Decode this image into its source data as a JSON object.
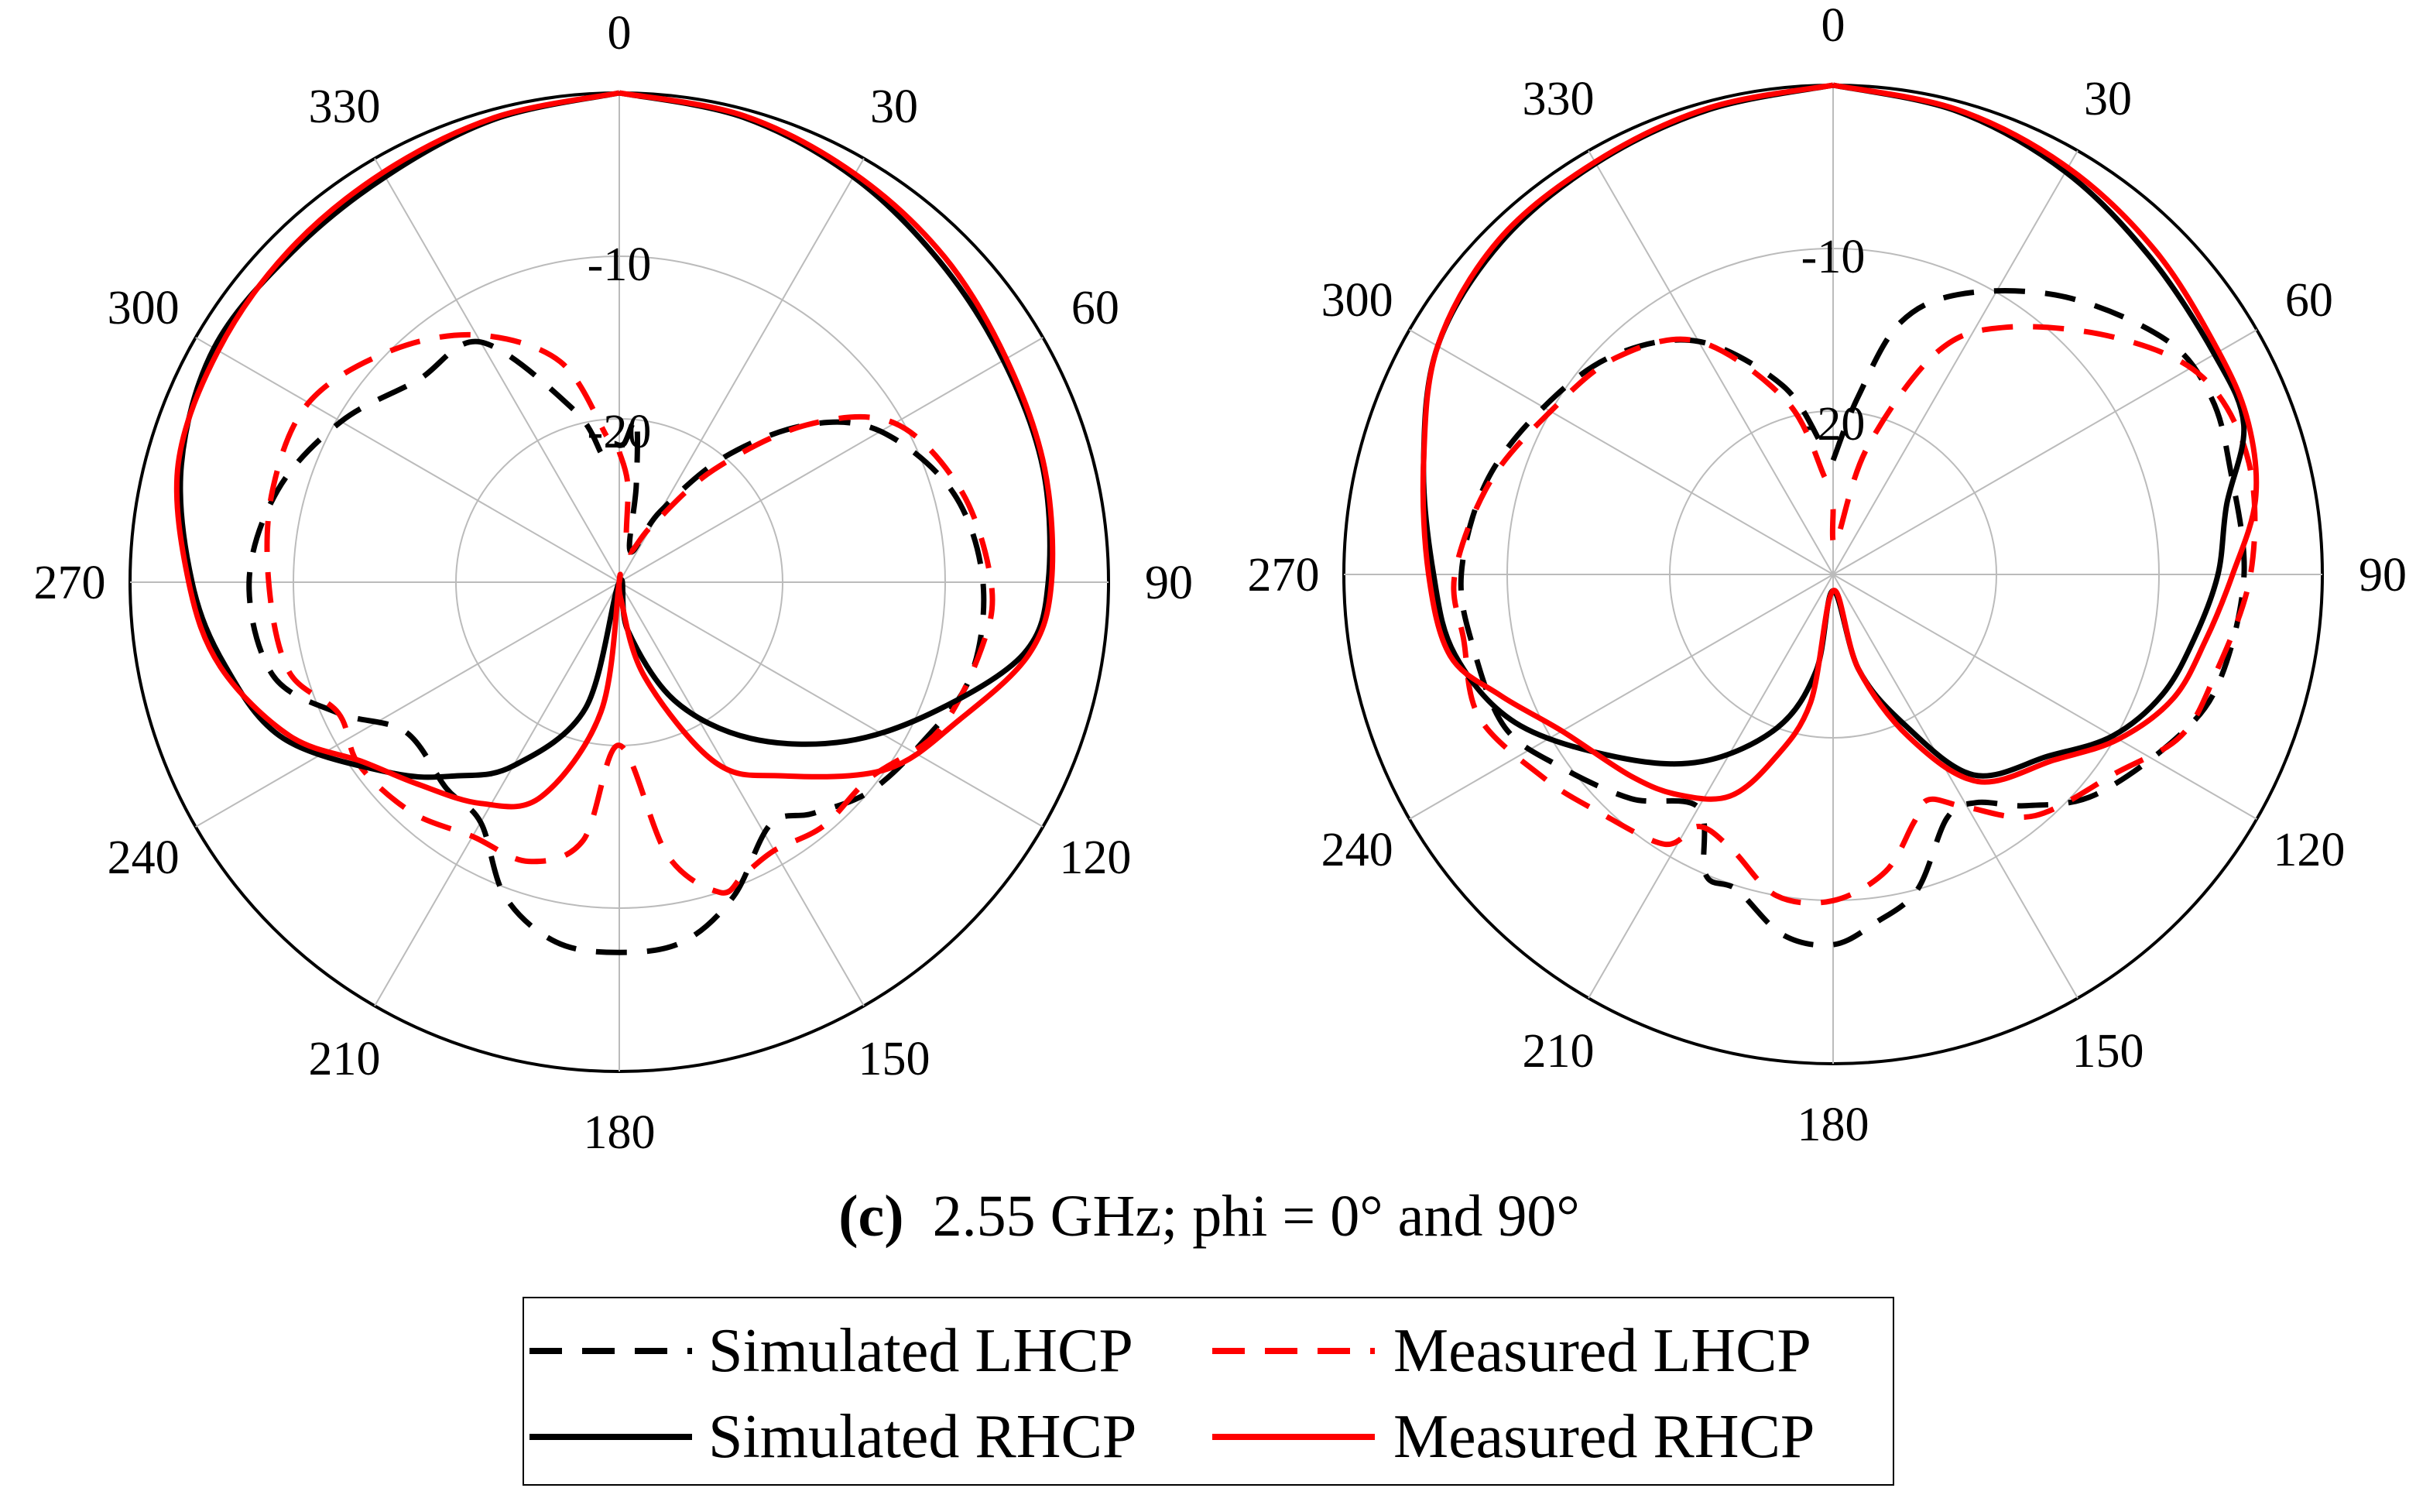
{
  "chart_data": [
    {
      "type": "polar",
      "title": "phi = 0°",
      "angle_ticks": [
        "0",
        "30",
        "60",
        "90",
        "120",
        "150",
        "180",
        "210",
        "240",
        "270",
        "300",
        "330"
      ],
      "radial_ticks": [
        "-10",
        "-20"
      ],
      "rlim": [
        -30,
        0
      ],
      "units": "dB",
      "series": [
        {
          "name": "Simulated LHCP",
          "color": "#000000",
          "dash": "dashed",
          "points": [
            [
              -2,
              -21.5
            ],
            [
              2,
              -21.5
            ],
            [
              6,
              -20
            ],
            [
              10,
              -24
            ],
            [
              20,
              -28
            ],
            [
              30,
              -25
            ],
            [
              40,
              -20
            ],
            [
              50,
              -15
            ],
            [
              60,
              -11.5
            ],
            [
              75,
              -8.8
            ],
            [
              90,
              -7.7
            ],
            [
              105,
              -7.7
            ],
            [
              118,
              -9
            ],
            [
              130,
              -10
            ],
            [
              140,
              -11.5
            ],
            [
              148,
              -12.5
            ],
            [
              160,
              -9.5
            ],
            [
              170,
              -7.6
            ],
            [
              180,
              -7.3
            ],
            [
              190,
              -7.6
            ],
            [
              200,
              -9.5
            ],
            [
              210,
              -13
            ],
            [
              220,
              -13.5
            ],
            [
              235,
              -14
            ],
            [
              245,
              -11
            ],
            [
              255,
              -8
            ],
            [
              270,
              -7.3
            ],
            [
              285,
              -8.3
            ],
            [
              300,
              -10.3
            ],
            [
              315,
              -12.5
            ],
            [
              330,
              -13
            ],
            [
              345,
              -19
            ],
            [
              352,
              -22
            ]
          ]
        },
        {
          "name": "Measured LHCP",
          "color": "#ff0000",
          "dash": "dashed",
          "points": [
            [
              0,
              -22
            ],
            [
              5,
              -24
            ],
            [
              15,
              -28
            ],
            [
              30,
              -26
            ],
            [
              40,
              -21
            ],
            [
              50,
              -15
            ],
            [
              60,
              -10.5
            ],
            [
              75,
              -8.3
            ],
            [
              90,
              -7.2
            ],
            [
              100,
              -7.4
            ],
            [
              115,
              -8.4
            ],
            [
              128,
              -10.5
            ],
            [
              140,
              -10.5
            ],
            [
              150,
              -11
            ],
            [
              157,
              -10.5
            ],
            [
              162,
              -10
            ],
            [
              170,
              -13
            ],
            [
              180,
              -20
            ],
            [
              188,
              -14
            ],
            [
              198,
              -12
            ],
            [
              210,
              -12
            ],
            [
              222,
              -11
            ],
            [
              235,
              -10.5
            ],
            [
              245,
              -11
            ],
            [
              255,
              -9
            ],
            [
              270,
              -8.5
            ],
            [
              285,
              -8
            ],
            [
              300,
              -8
            ],
            [
              315,
              -10
            ],
            [
              330,
              -12.5
            ],
            [
              345,
              -16
            ],
            [
              355,
              -21
            ]
          ]
        },
        {
          "name": "Simulated RHCP",
          "color": "#000000",
          "dash": "solid",
          "points": [
            [
              0,
              0
            ],
            [
              15,
              -0.5
            ],
            [
              30,
              -1.3
            ],
            [
              45,
              -2.2
            ],
            [
              60,
              -2.8
            ],
            [
              75,
              -3.1
            ],
            [
              90,
              -3.7
            ],
            [
              100,
              -4.8
            ],
            [
              112,
              -9
            ],
            [
              125,
              -13
            ],
            [
              140,
              -17.5
            ],
            [
              155,
              -22
            ],
            [
              170,
              -27
            ],
            [
              180,
              -30
            ],
            [
              195,
              -22
            ],
            [
              210,
              -17
            ],
            [
              220,
              -14.5
            ],
            [
              230,
              -11.8
            ],
            [
              245,
              -7.3
            ],
            [
              258,
              -5.3
            ],
            [
              270,
              -3.8
            ],
            [
              285,
              -2.2
            ],
            [
              300,
              -1.3
            ],
            [
              315,
              -1.5
            ],
            [
              330,
              -1.3
            ],
            [
              345,
              -0.6
            ],
            [
              360,
              0
            ]
          ]
        },
        {
          "name": "Measured RHCP",
          "color": "#ff0000",
          "dash": "solid",
          "points": [
            [
              0,
              0
            ],
            [
              15,
              -0.4
            ],
            [
              30,
              -1.1
            ],
            [
              45,
              -1.8
            ],
            [
              60,
              -2.6
            ],
            [
              75,
              -3
            ],
            [
              90,
              -3.5
            ],
            [
              100,
              -4.5
            ],
            [
              112,
              -7.5
            ],
            [
              125,
              -10
            ],
            [
              140,
              -14.5
            ],
            [
              152,
              -17.5
            ],
            [
              165,
              -24
            ],
            [
              175,
              -29
            ],
            [
              180,
              -30
            ],
            [
              188,
              -22
            ],
            [
              200,
              -16
            ],
            [
              212,
              -14
            ],
            [
              225,
              -12.5
            ],
            [
              235,
              -10.8
            ],
            [
              245,
              -7.7
            ],
            [
              258,
              -5
            ],
            [
              270,
              -3.6
            ],
            [
              285,
              -2
            ],
            [
              300,
              -1.6
            ],
            [
              315,
              -1.3
            ],
            [
              330,
              -1
            ],
            [
              345,
              -0.5
            ],
            [
              360,
              0
            ]
          ]
        }
      ]
    },
    {
      "type": "polar",
      "title": "phi = 90°",
      "angle_ticks": [
        "0",
        "30",
        "60",
        "90",
        "120",
        "150",
        "180",
        "210",
        "240",
        "270",
        "300",
        "330"
      ],
      "radial_ticks": [
        "-10",
        "-20"
      ],
      "rlim": [
        -30,
        0
      ],
      "units": "dB",
      "series": [
        {
          "name": "Simulated LHCP",
          "color": "#000000",
          "dash": "dashed",
          "points": [
            [
              0,
              -23
            ],
            [
              8,
              -19
            ],
            [
              15,
              -14
            ],
            [
              25,
              -11
            ],
            [
              40,
              -7.8
            ],
            [
              55,
              -5
            ],
            [
              65,
              -4.4
            ],
            [
              75,
              -4.8
            ],
            [
              90,
              -4.8
            ],
            [
              105,
              -5.4
            ],
            [
              115,
              -6.6
            ],
            [
              130,
              -9
            ],
            [
              140,
              -11.5
            ],
            [
              148,
              -13.5
            ],
            [
              155,
              -13.5
            ],
            [
              165,
              -10
            ],
            [
              173,
              -8.5
            ],
            [
              180,
              -7.3
            ],
            [
              188,
              -7.7
            ],
            [
              197,
              -9.8
            ],
            [
              203,
              -10
            ],
            [
              210,
              -13.5
            ],
            [
              222,
              -11.5
            ],
            [
              235,
              -9.5
            ],
            [
              245,
              -7.8
            ],
            [
              258,
              -7.5
            ],
            [
              270,
              -7.2
            ],
            [
              285,
              -8
            ],
            [
              300,
              -9.5
            ],
            [
              315,
              -11
            ],
            [
              330,
              -13.5
            ],
            [
              345,
              -18
            ],
            [
              355,
              -22
            ]
          ]
        },
        {
          "name": "Measured LHCP",
          "color": "#ff0000",
          "dash": "dashed",
          "points": [
            [
              0,
              -26
            ],
            [
              5,
              -28
            ],
            [
              15,
              -22
            ],
            [
              25,
              -15
            ],
            [
              35,
              -11.5
            ],
            [
              50,
              -7.4
            ],
            [
              62,
              -4.3
            ],
            [
              75,
              -3.6
            ],
            [
              90,
              -4.4
            ],
            [
              105,
              -5.8
            ],
            [
              115,
              -6.5
            ],
            [
              125,
              -8.8
            ],
            [
              140,
              -10.7
            ],
            [
              150,
              -13.5
            ],
            [
              157,
              -15
            ],
            [
              162,
              -14
            ],
            [
              170,
              -11.5
            ],
            [
              180,
              -10
            ],
            [
              190,
              -10
            ],
            [
              200,
              -12
            ],
            [
              208,
              -12.5
            ],
            [
              212,
              -10.5
            ],
            [
              225,
              -9.5
            ],
            [
              235,
              -8.3
            ],
            [
              248,
              -6.6
            ],
            [
              260,
              -7
            ],
            [
              270,
              -6.8
            ],
            [
              285,
              -8.2
            ],
            [
              300,
              -10
            ],
            [
              315,
              -11.2
            ],
            [
              330,
              -13.5
            ],
            [
              345,
              -19
            ],
            [
              355,
              -24
            ]
          ]
        },
        {
          "name": "Simulated RHCP",
          "color": "#000000",
          "dash": "solid",
          "points": [
            [
              0,
              0
            ],
            [
              15,
              -0.6
            ],
            [
              30,
              -1.5
            ],
            [
              45,
              -2.5
            ],
            [
              60,
              -3
            ],
            [
              70,
              -3.2
            ],
            [
              80,
              -5.5
            ],
            [
              90,
              -6.4
            ],
            [
              100,
              -7.5
            ],
            [
              110,
              -8.5
            ],
            [
              120,
              -10.2
            ],
            [
              130,
              -12.7
            ],
            [
              145,
              -15
            ],
            [
              155,
              -20
            ],
            [
              165,
              -24
            ],
            [
              180,
              -29
            ],
            [
              190,
              -24
            ],
            [
              200,
              -20
            ],
            [
              215,
              -16
            ],
            [
              230,
              -12.6
            ],
            [
              245,
              -8.5
            ],
            [
              258,
              -6.3
            ],
            [
              270,
              -5.5
            ],
            [
              285,
              -4
            ],
            [
              300,
              -2
            ],
            [
              315,
              -1.2
            ],
            [
              330,
              -0.9
            ],
            [
              345,
              -0.5
            ],
            [
              360,
              0
            ]
          ]
        },
        {
          "name": "Measured RHCP",
          "color": "#ff0000",
          "dash": "solid",
          "points": [
            [
              0,
              0
            ],
            [
              15,
              -0.5
            ],
            [
              30,
              -1.2
            ],
            [
              45,
              -2
            ],
            [
              60,
              -2.7
            ],
            [
              70,
              -2.9
            ],
            [
              80,
              -3.7
            ],
            [
              90,
              -5.5
            ],
            [
              100,
              -6.8
            ],
            [
              110,
              -7.8
            ],
            [
              120,
              -9.8
            ],
            [
              130,
              -12.3
            ],
            [
              145,
              -14.5
            ],
            [
              155,
              -19
            ],
            [
              165,
              -24
            ],
            [
              180,
              -29
            ],
            [
              190,
              -22
            ],
            [
              198,
              -18
            ],
            [
              205,
              -15
            ],
            [
              215,
              -13.5
            ],
            [
              225,
              -12.5
            ],
            [
              240,
              -10.8
            ],
            [
              250,
              -8.3
            ],
            [
              258,
              -6
            ],
            [
              270,
              -5.2
            ],
            [
              285,
              -4
            ],
            [
              300,
              -2
            ],
            [
              315,
              -1
            ],
            [
              330,
              -0.8
            ],
            [
              345,
              -0.4
            ],
            [
              360,
              0
            ]
          ]
        }
      ]
    }
  ],
  "caption": {
    "letter": "(c)",
    "text": "2.55 GHz; phi = 0° and 90°"
  },
  "legend": {
    "items": [
      {
        "label": "Simulated LHCP",
        "color": "#000000",
        "dash": "dashed"
      },
      {
        "label": "Measured LHCP",
        "color": "#ff0000",
        "dash": "dashed"
      },
      {
        "label": "Simulated RHCP",
        "color": "#000000",
        "dash": "solid"
      },
      {
        "label": "Measured RHCP",
        "color": "#ff0000",
        "dash": "solid"
      }
    ]
  }
}
